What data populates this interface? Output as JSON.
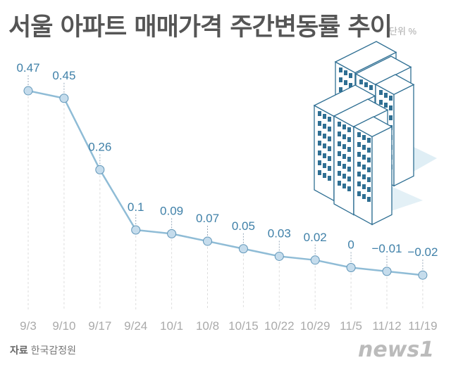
{
  "chart_data": {
    "type": "line",
    "title": "서울 아파트 매매가격 주간변동률 추이",
    "unit_label": "단위 %",
    "categories": [
      "9/3",
      "9/10",
      "9/17",
      "9/24",
      "10/1",
      "10/8",
      "10/15",
      "10/22",
      "10/29",
      "11/5",
      "11/12",
      "11/19"
    ],
    "values": [
      0.47,
      0.45,
      0.26,
      0.1,
      0.09,
      0.07,
      0.05,
      0.03,
      0.02,
      0,
      -0.01,
      -0.02
    ],
    "data_labels": [
      "0.47",
      "0.45",
      "0.26",
      "0.1",
      "0.09",
      "0.07",
      "0.05",
      "0.03",
      "0.02",
      "0",
      "−0.01",
      "−0.02"
    ],
    "grid": false,
    "colors": {
      "line": "#8fbcd6",
      "point": "#c5dcec",
      "point_border": "#5f95b8",
      "label": "#3f80a8",
      "tick": "#aaaaaa"
    }
  },
  "source_label": "자료",
  "source": "한국감정원",
  "logo": "news1"
}
